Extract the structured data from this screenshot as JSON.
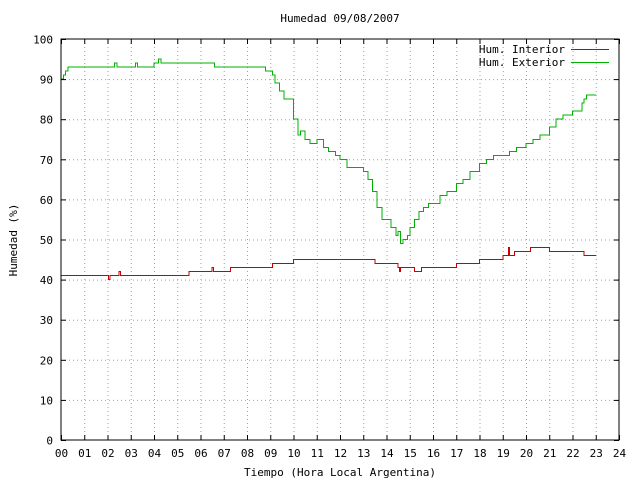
{
  "chart_data": {
    "type": "line",
    "title": "Humedad 09/08/2007",
    "xlabel": "Tiempo (Hora Local Argentina)",
    "ylabel": "Humedad (%)",
    "xlim": [
      0,
      24
    ],
    "ylim": [
      0,
      100
    ],
    "x_ticks": [
      "00",
      "01",
      "02",
      "03",
      "04",
      "05",
      "06",
      "07",
      "08",
      "09",
      "10",
      "11",
      "12",
      "13",
      "14",
      "15",
      "16",
      "17",
      "18",
      "19",
      "20",
      "21",
      "22",
      "23",
      "24"
    ],
    "y_ticks": [
      "0",
      "10",
      "20",
      "30",
      "40",
      "50",
      "60",
      "70",
      "80",
      "90",
      "100"
    ],
    "grid": true,
    "legend_position": "top-right",
    "series": [
      {
        "name": "Hum. Interior",
        "color": "#cc0000",
        "x": [
          0.0,
          2.0,
          2.05,
          2.1,
          2.4,
          2.5,
          2.55,
          2.6,
          3.0,
          3.5,
          4.0,
          4.5,
          5.0,
          5.5,
          6.0,
          6.4,
          6.5,
          6.55,
          7.0,
          7.3,
          7.5,
          8.0,
          8.5,
          9.0,
          9.1,
          9.5,
          10.0,
          11.0,
          11.5,
          12.0,
          12.5,
          13.0,
          13.5,
          14.0,
          14.5,
          14.55,
          14.6,
          15.0,
          15.2,
          15.5,
          16.0,
          16.5,
          17.0,
          17.5,
          18.0,
          18.5,
          19.0,
          19.2,
          19.25,
          19.3,
          19.5,
          20.0,
          20.2,
          21.0,
          21.5,
          22.0,
          22.5,
          23.0
        ],
        "y": [
          41,
          41,
          40,
          41,
          41,
          42,
          41,
          41,
          41,
          41,
          41,
          41,
          41,
          42,
          42,
          42,
          43,
          42,
          42,
          43,
          43,
          43,
          43,
          43,
          44,
          44,
          45,
          45,
          45,
          45,
          45,
          45,
          44,
          44,
          43,
          42,
          43,
          43,
          42,
          43,
          43,
          43,
          44,
          44,
          45,
          45,
          46,
          46,
          48,
          46,
          47,
          47,
          48,
          47,
          47,
          47,
          46,
          46
        ]
      },
      {
        "name": "Hum. Exterior",
        "color": "#00b000",
        "x": [
          0.0,
          0.1,
          0.2,
          0.3,
          0.5,
          1.0,
          1.5,
          2.0,
          2.3,
          2.4,
          2.5,
          3.0,
          3.2,
          3.3,
          3.5,
          4.0,
          4.2,
          4.3,
          4.5,
          5.0,
          6.0,
          6.5,
          6.6,
          7.0,
          8.0,
          8.5,
          8.8,
          9.0,
          9.1,
          9.2,
          9.4,
          9.6,
          9.8,
          10.0,
          10.2,
          10.3,
          10.5,
          10.7,
          11.0,
          11.3,
          11.5,
          11.8,
          12.0,
          12.3,
          12.7,
          13.0,
          13.2,
          13.4,
          13.6,
          13.8,
          14.0,
          14.2,
          14.4,
          14.5,
          14.6,
          14.7,
          14.8,
          14.9,
          15.0,
          15.2,
          15.4,
          15.6,
          15.8,
          16.0,
          16.3,
          16.6,
          17.0,
          17.3,
          17.6,
          18.0,
          18.3,
          18.6,
          19.0,
          19.3,
          19.6,
          20.0,
          20.3,
          20.6,
          21.0,
          21.3,
          21.6,
          22.0,
          22.3,
          22.4,
          22.5,
          22.6,
          23.0
        ],
        "y": [
          90,
          91,
          92,
          93,
          93,
          93,
          93,
          93,
          94,
          93,
          93,
          93,
          94,
          93,
          93,
          94,
          95,
          94,
          94,
          94,
          94,
          94,
          93,
          93,
          93,
          93,
          92,
          92,
          91,
          89,
          87,
          85,
          85,
          80,
          76,
          77,
          75,
          74,
          75,
          73,
          72,
          71,
          70,
          68,
          68,
          67,
          65,
          62,
          58,
          55,
          55,
          53,
          51,
          52,
          49,
          50,
          50,
          51,
          53,
          55,
          57,
          58,
          59,
          59,
          61,
          62,
          64,
          65,
          67,
          69,
          70,
          71,
          71,
          72,
          73,
          74,
          75,
          76,
          78,
          80,
          81,
          82,
          82,
          84,
          85,
          86,
          86
        ]
      }
    ]
  }
}
